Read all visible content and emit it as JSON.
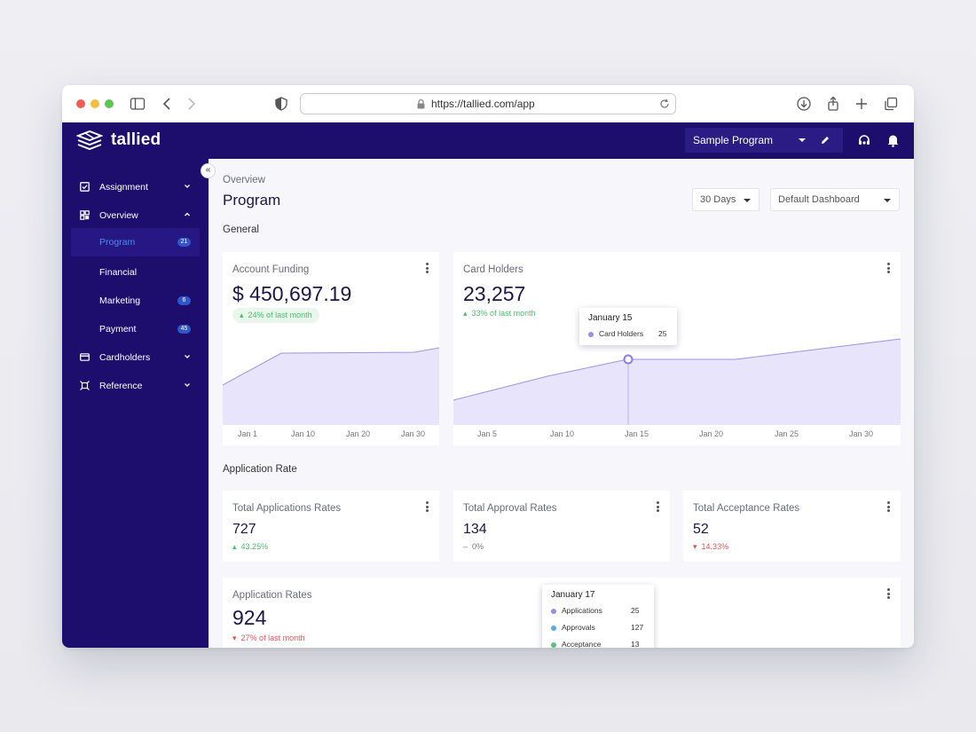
{
  "browser": {
    "url": "https://tallied.com/app"
  },
  "app": {
    "brand": "tallied",
    "program_select": "Sample Program",
    "colors": {
      "nav_bg": "#1d0e6e",
      "accent": "#4b8df0",
      "area_fill": "#e8e4fb",
      "area_line": "#9d92e4"
    }
  },
  "sidebar": {
    "items": [
      {
        "label": "Assignment",
        "icon": "checkbox-icon",
        "chevron": "down"
      },
      {
        "label": "Overview",
        "icon": "grid-icon",
        "chevron": "up"
      },
      {
        "label": "Program",
        "badge": "21",
        "active": true
      },
      {
        "label": "Financial"
      },
      {
        "label": "Marketing",
        "badge": "6"
      },
      {
        "label": "Payment",
        "badge": "45"
      },
      {
        "label": "Cardholders",
        "icon": "card-icon",
        "chevron": "down"
      },
      {
        "label": "Reference",
        "icon": "reference-icon",
        "chevron": "down"
      }
    ]
  },
  "header": {
    "breadcrumb": "Overview",
    "title": "Program",
    "range_select": "30 Days",
    "dashboard_select": "Default Dashboard"
  },
  "sections": {
    "general": "General",
    "application_rate": "Application Rate"
  },
  "cards": {
    "account_funding": {
      "title": "Account Funding",
      "value": "$ 450,697.19",
      "delta": "24% of last month",
      "x_ticks": [
        "Jan 1",
        "Jan 10",
        "Jan 20",
        "Jan 30"
      ]
    },
    "card_holders": {
      "title": "Card Holders",
      "value": "23,257",
      "delta": "33% of last month",
      "x_ticks": [
        "Jan 5",
        "Jan 10",
        "Jan 15",
        "Jan 20",
        "Jan 25",
        "Jan 30"
      ],
      "tooltip": {
        "title": "January 15",
        "label": "Card Holders",
        "value": "25"
      }
    },
    "total_applications": {
      "title": "Total Applications Rates",
      "value": "727",
      "delta": "43.25%",
      "trend": "up"
    },
    "total_approval": {
      "title": "Total Approval Rates",
      "value": "134",
      "delta": "0%",
      "trend": "flat"
    },
    "total_acceptance": {
      "title": "Total Acceptance Rates",
      "value": "52",
      "delta": "14.33%",
      "trend": "down"
    },
    "application_rates": {
      "title": "Application Rates",
      "value": "924",
      "delta": "27% of last month",
      "tooltip": {
        "title": "January 17",
        "rows": [
          {
            "label": "Applications",
            "value": "25",
            "color": "#9b8ce6"
          },
          {
            "label": "Approvals",
            "value": "127",
            "color": "#5aa9e6"
          },
          {
            "label": "Acceptance",
            "value": "13",
            "color": "#5cc07a"
          }
        ]
      }
    }
  }
}
